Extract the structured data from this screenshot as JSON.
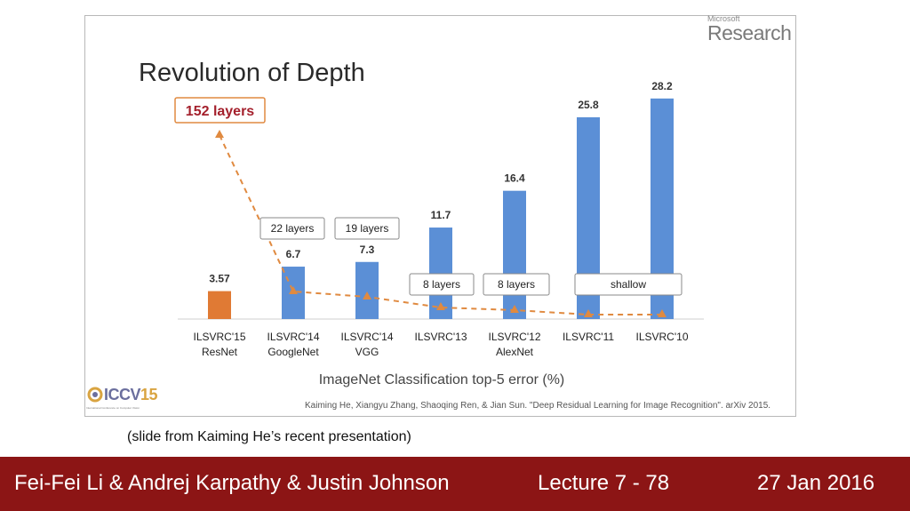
{
  "slide": {
    "brand_small": "Microsoft",
    "brand_large": "Research",
    "citation": "Kaiming He, Xiangyu Zhang, Shaoqing Ren, & Jian Sun. \"Deep Residual Learning for Image Recognition\". arXiv 2015.",
    "conference_logo": "ICCV15",
    "conference_logo_prefix": "ICCV",
    "conference_logo_year": "15",
    "conference_subtitle": "International Conference on Computer Vision"
  },
  "chart_data": {
    "type": "bar",
    "title": "Revolution of Depth",
    "xlabel": "ImageNet Classification top-5 error (%)",
    "ylabel": "",
    "ylim": [
      0,
      30
    ],
    "categories": [
      [
        "ILSVRC'15",
        "ResNet"
      ],
      [
        "ILSVRC'14",
        "GoogleNet"
      ],
      [
        "ILSVRC'14",
        "VGG"
      ],
      [
        "ILSVRC'13"
      ],
      [
        "ILSVRC'12",
        "AlexNet"
      ],
      [
        "ILSVRC'11"
      ],
      [
        "ILSVRC'10"
      ]
    ],
    "values": [
      3.57,
      6.7,
      7.3,
      11.7,
      16.4,
      25.8,
      28.2
    ],
    "value_labels": [
      "3.57",
      "6.7",
      "7.3",
      "11.7",
      "16.4",
      "25.8",
      "28.2"
    ],
    "bar_colors": [
      "#e07a34",
      "#5b8fd6",
      "#5b8fd6",
      "#5b8fd6",
      "#5b8fd6",
      "#5b8fd6",
      "#5b8fd6"
    ],
    "depth_labels": [
      {
        "text": "152 layers",
        "bars": [
          0
        ],
        "highlight": true
      },
      {
        "text": "22 layers",
        "bars": [
          1
        ]
      },
      {
        "text": "19 layers",
        "bars": [
          2
        ]
      },
      {
        "text": "8 layers",
        "bars": [
          3
        ]
      },
      {
        "text": "8 layers",
        "bars": [
          4
        ]
      },
      {
        "text": "shallow",
        "bars": [
          5,
          6
        ]
      }
    ],
    "depth_trend_colors": {
      "line": "#e08a40",
      "highlight_border": "#e08a40",
      "highlight_text": "#a4202c"
    }
  },
  "caption": "(slide from Kaiming He’s recent presentation)",
  "footer": {
    "authors": "Fei-Fei Li & Andrej Karpathy & Justin Johnson",
    "lecture": "Lecture 7 -  78",
    "date": "27 Jan 2016",
    "background": "#8c1515"
  }
}
